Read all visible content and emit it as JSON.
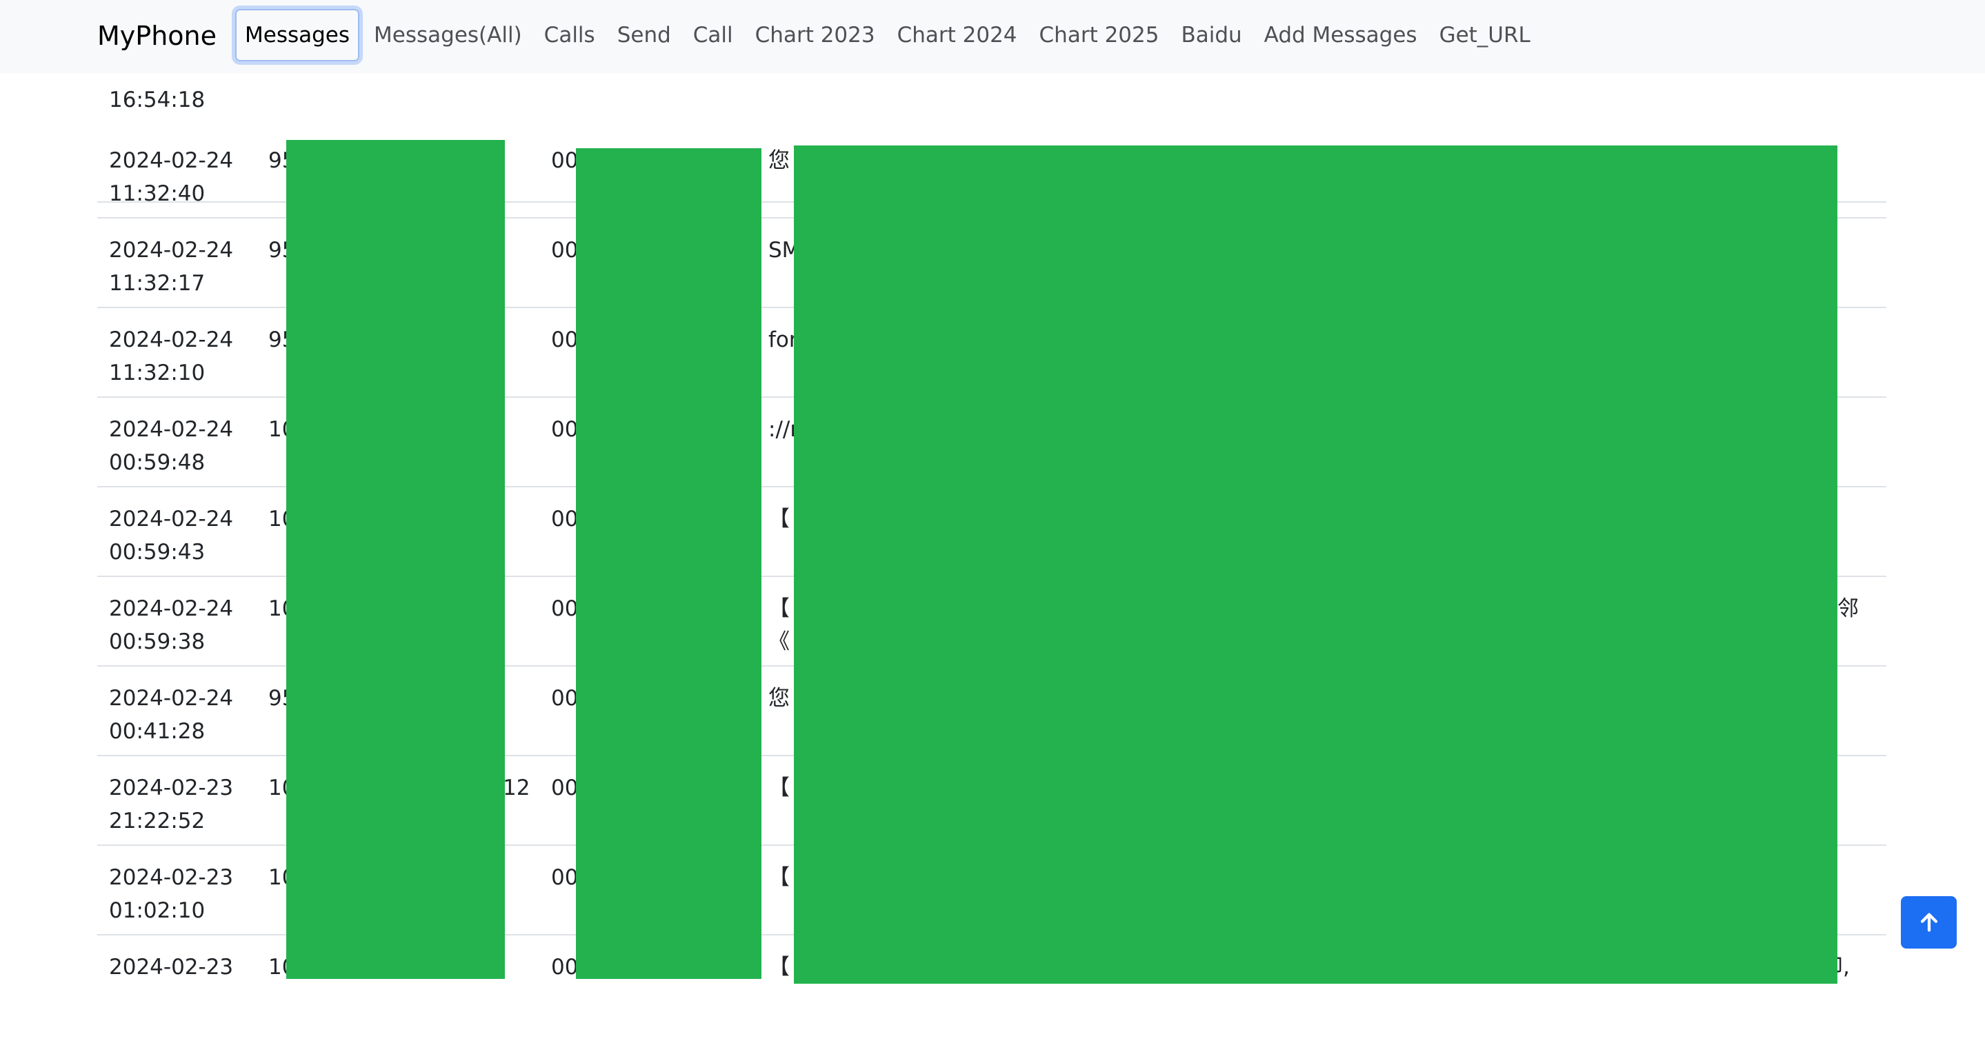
{
  "navbar": {
    "brand": "MyPhone",
    "links": [
      {
        "label": "Messages",
        "active": true
      },
      {
        "label": "Messages(All)"
      },
      {
        "label": "Calls"
      },
      {
        "label": "Send"
      },
      {
        "label": "Call"
      },
      {
        "label": "Chart 2023"
      },
      {
        "label": "Chart 2024"
      },
      {
        "label": "Chart 2025"
      },
      {
        "label": "Baidu"
      },
      {
        "label": "Add Messages"
      },
      {
        "label": "Get_URL"
      }
    ]
  },
  "messages": [
    {
      "time": "16:54:18",
      "number": "",
      "code": "",
      "body": "",
      "tail": ""
    },
    {
      "time": "2024-02-24\n11:32:40",
      "number": "95",
      "code": "00",
      "body": "您",
      "tail": ""
    },
    {
      "time": "2024-02-24\n11:32:17",
      "number": "95",
      "code": "00",
      "body": "SM",
      "tail": ""
    },
    {
      "time": "2024-02-24\n11:32:10",
      "number": "95",
      "code": "00",
      "body": "for",
      "tail": ""
    },
    {
      "time": "2024-02-24\n00:59:48",
      "number": "10",
      "code": "00",
      "body": "://r",
      "tail": ""
    },
    {
      "time": "2024-02-24\n00:59:43",
      "number": "10",
      "code": "00",
      "body": "【",
      "tail": ""
    },
    {
      "time": "2024-02-24\n00:59:38",
      "number": "10",
      "code": "00",
      "body": "【\n《",
      "tail": "邻"
    },
    {
      "time": "2024-02-24\n00:41:28",
      "number": "95",
      "code": "00",
      "body": "您",
      "tail": ""
    },
    {
      "time": "2024-02-23\n21:22:52",
      "number": "10",
      "code": "00",
      "body": "【",
      "tail": "",
      "number_tail": "12"
    },
    {
      "time": "2024-02-23\n01:02:10",
      "number": "10",
      "code": "00",
      "body": "【",
      "tail": ""
    },
    {
      "time": "2024-02-23",
      "number": "10",
      "code": "00",
      "body": "【",
      "tail": "印,"
    }
  ],
  "redaction_color": "#24b24f",
  "back_to_top_icon": "arrow-up-icon"
}
